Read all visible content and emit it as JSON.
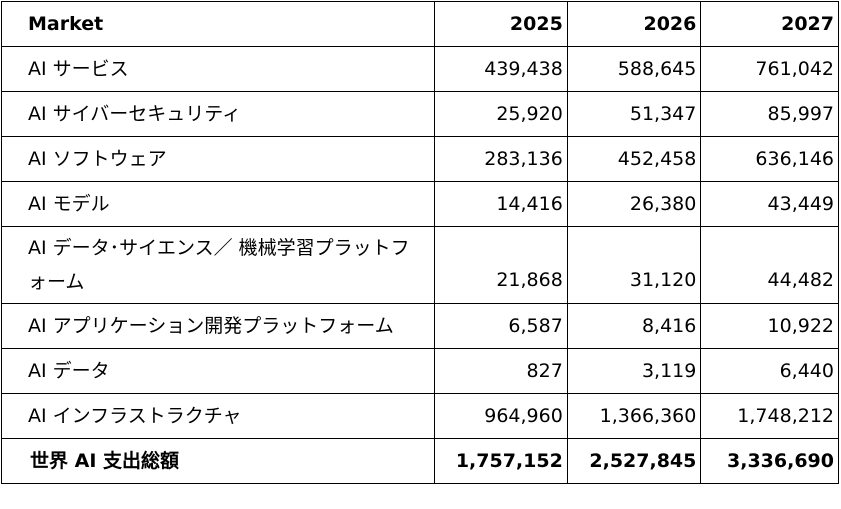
{
  "table": {
    "headers": {
      "market": "Market",
      "years": [
        "2025",
        "2026",
        "2027"
      ]
    },
    "rows": [
      {
        "market": "AI サービス",
        "values": [
          "439,438",
          "588,645",
          "761,042"
        ]
      },
      {
        "market": "AI サイバーセキュリティ",
        "values": [
          "25,920",
          "51,347",
          "85,997"
        ]
      },
      {
        "market": "AI ソフトウェア",
        "values": [
          "283,136",
          "452,458",
          "636,146"
        ]
      },
      {
        "market": "AI モデル",
        "values": [
          "14,416",
          "26,380",
          "43,449"
        ]
      },
      {
        "market": "AI データ･サイエンス／ 機械学習プラットフォーム",
        "values": [
          "21,868",
          "31,120",
          "44,482"
        ]
      },
      {
        "market": "AI アプリケーション開発プラットフォーム",
        "values": [
          "6,587",
          "8,416",
          "10,922"
        ]
      },
      {
        "market": "AI データ",
        "values": [
          "827",
          "3,119",
          "6,440"
        ]
      },
      {
        "market": "AI インフラストラクチャ",
        "values": [
          "964,960",
          "1,366,360",
          "1,748,212"
        ]
      }
    ],
    "total": {
      "market": "世界 AI 支出総額",
      "values": [
        "1,757,152",
        "2,527,845",
        "3,336,690"
      ]
    }
  }
}
